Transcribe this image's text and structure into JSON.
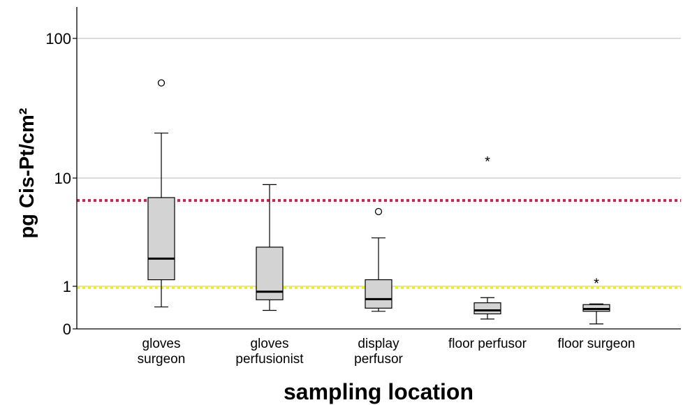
{
  "chart_data": {
    "type": "box",
    "xlabel": "sampling location",
    "ylabel": "pg Cis-Pt/cm²",
    "y_scale": "log-like",
    "ylim": [
      0,
      180
    ],
    "y_ticks": [
      {
        "value": 0,
        "label": "0"
      },
      {
        "value": 1,
        "label": "1"
      },
      {
        "value": 10,
        "label": "10"
      },
      {
        "value": 100,
        "label": "100"
      }
    ],
    "grid": true,
    "reference_lines": [
      {
        "value": 6.2,
        "color": "#d81b47",
        "style": "dotted"
      },
      {
        "value": 0.95,
        "color": "#f2f20a",
        "style": "dotted"
      }
    ],
    "categories": [
      {
        "label_lines": [
          "gloves",
          "surgeon"
        ]
      },
      {
        "label_lines": [
          "gloves",
          "perfusionist"
        ]
      },
      {
        "label_lines": [
          "display",
          "perfusor"
        ]
      },
      {
        "label_lines": [
          "floor perfusor"
        ]
      },
      {
        "label_lines": [
          "floor surgeon"
        ]
      }
    ],
    "boxes": [
      {
        "min": 0.3,
        "q1": 1.15,
        "median": 1.8,
        "q3": 6.6,
        "max": 21,
        "outliers": [
          {
            "value": 48,
            "marker": "circle"
          }
        ]
      },
      {
        "min": 0.22,
        "q1": 0.5,
        "median": 0.78,
        "q3": 2.3,
        "max": 8.7,
        "outliers": []
      },
      {
        "min": 0.2,
        "q1": 0.27,
        "median": 0.52,
        "q3": 1.15,
        "max": 2.8,
        "outliers": [
          {
            "value": 4.9,
            "marker": "circle"
          }
        ]
      },
      {
        "min": 0.07,
        "q1": 0.15,
        "median": 0.22,
        "q3": 0.41,
        "max": 0.57,
        "outliers": [
          {
            "value": 13.5,
            "marker": "star"
          }
        ]
      },
      {
        "min": 0.02,
        "q1": 0.2,
        "median": 0.25,
        "q3": 0.36,
        "max": 0.38,
        "outliers": [
          {
            "value": 1.1,
            "marker": "star"
          }
        ]
      }
    ],
    "box_fill": "#d3d3d3",
    "gridline_color": "#c8c8c8"
  }
}
